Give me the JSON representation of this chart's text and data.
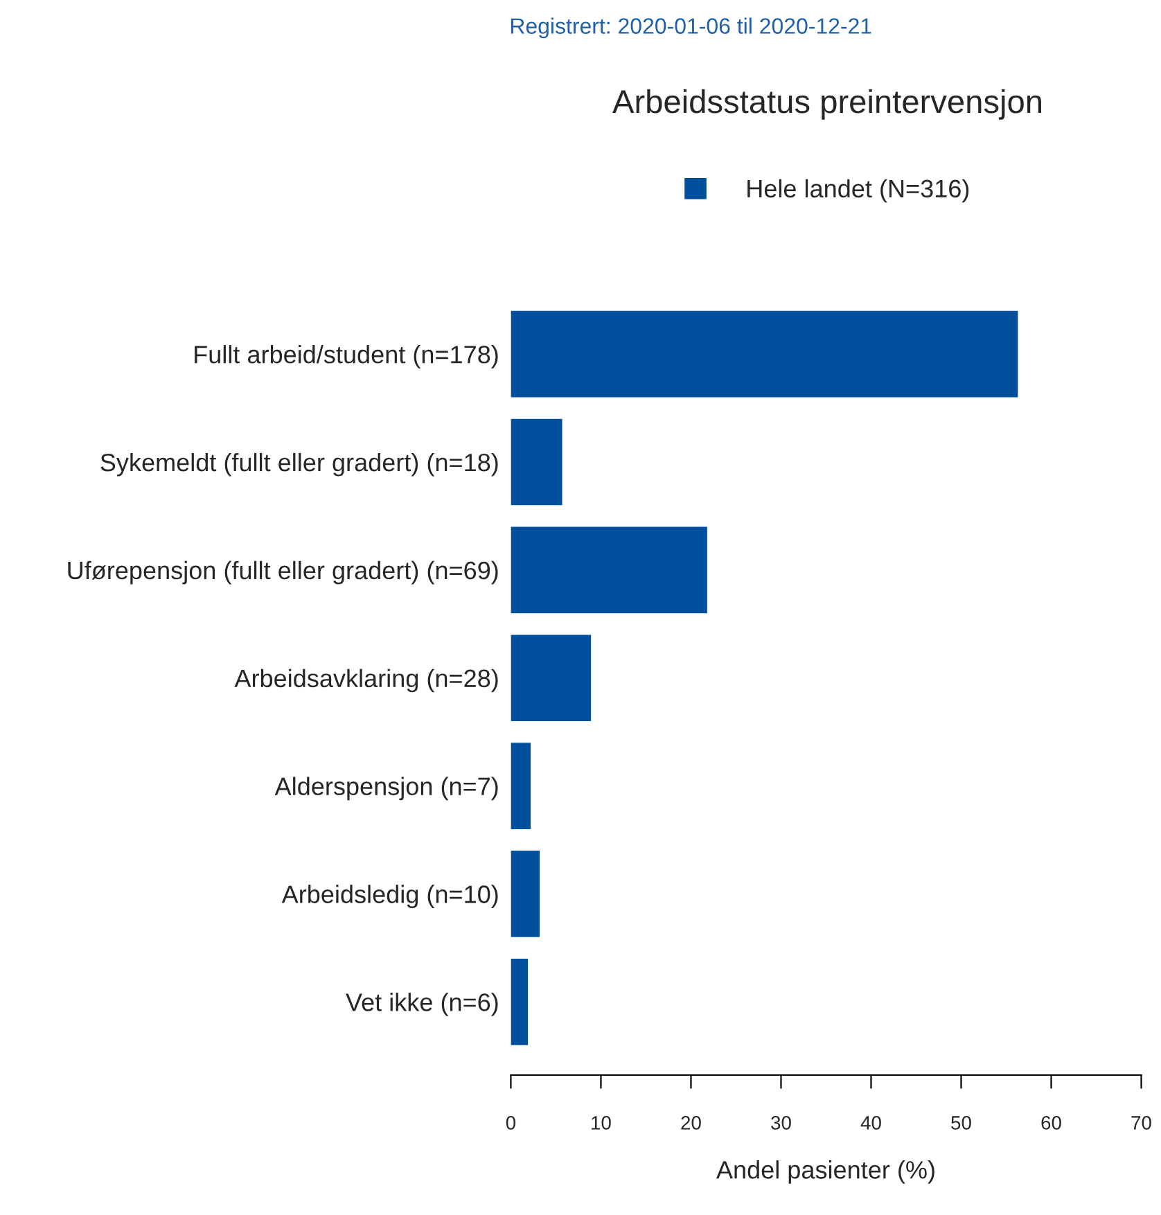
{
  "chart_data": {
    "type": "bar",
    "orientation": "horizontal",
    "subtitle": "Registrert: 2020-01-06 til 2020-12-21",
    "title": "Arbeidsstatus preintervensjon",
    "xlabel": "Andel pasienter (%)",
    "categories": [
      "Fullt arbeid/student (n=178)",
      "Sykemeldt (fullt eller gradert) (n=18)",
      "Uførepensjon (fullt eller gradert) (n=69)",
      "Arbeidsavklaring (n=28)",
      "Alderspensjon (n=7)",
      "Arbeidsledig (n=10)",
      "Vet ikke (n=6)"
    ],
    "series": [
      {
        "name": "Hele landet (N=316)",
        "color": "#00509e",
        "values": [
          56.3,
          5.7,
          21.8,
          8.9,
          2.2,
          3.2,
          1.9
        ]
      }
    ],
    "xlim": [
      0,
      70
    ],
    "xticks": [
      0,
      10,
      20,
      30,
      40,
      50,
      60,
      70
    ],
    "grid": false,
    "legend": "top"
  }
}
